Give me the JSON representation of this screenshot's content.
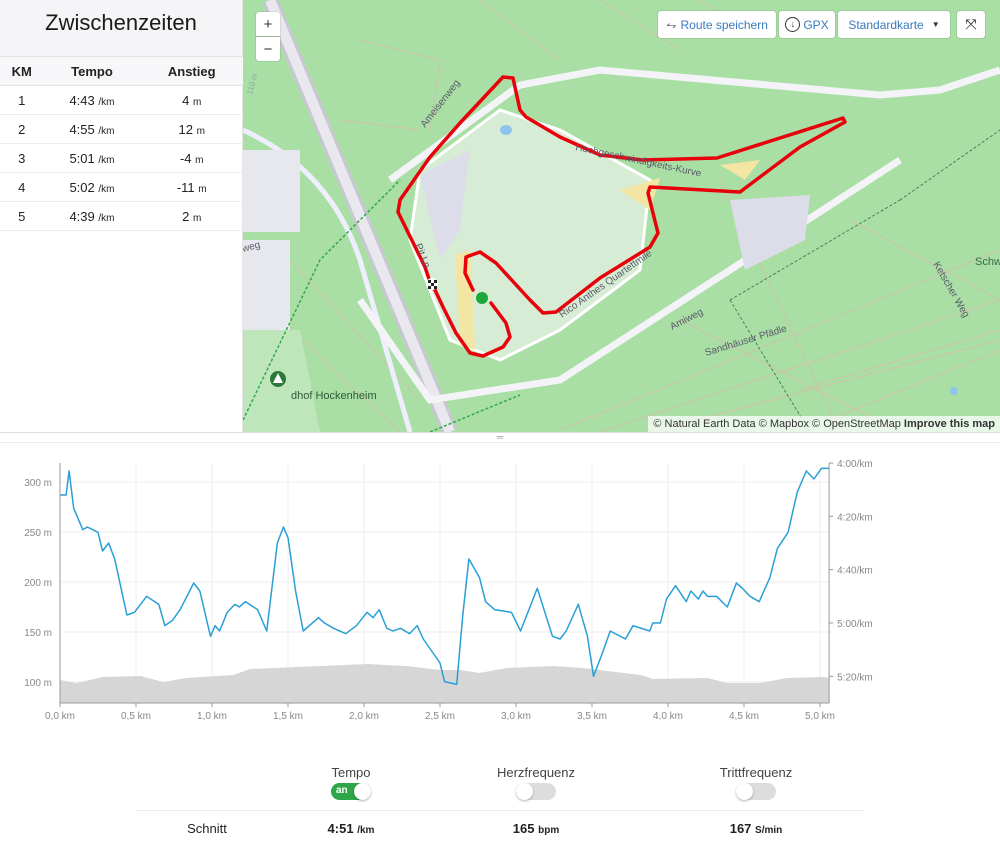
{
  "splits": {
    "title": "Zwischenzeiten",
    "columns": [
      "KM",
      "Tempo",
      "Anstieg"
    ],
    "rows": [
      {
        "km": "1",
        "pace": "4:43",
        "pace_unit": "/km",
        "climb": "4",
        "climb_unit": "m"
      },
      {
        "km": "2",
        "pace": "4:55",
        "pace_unit": "/km",
        "climb": "12",
        "climb_unit": "m"
      },
      {
        "km": "3",
        "pace": "5:01",
        "pace_unit": "/km",
        "climb": "-4",
        "climb_unit": "m"
      },
      {
        "km": "4",
        "pace": "5:02",
        "pace_unit": "/km",
        "climb": "-11",
        "climb_unit": "m"
      },
      {
        "km": "5",
        "pace": "4:39",
        "pace_unit": "/km",
        "climb": "2",
        "climb_unit": "m"
      }
    ]
  },
  "map": {
    "zoom_in": "+",
    "zoom_out": "−",
    "save_route": "Route speichern",
    "gpx": "GPX",
    "style": "Standardkarte",
    "labels": {
      "ameisenweg": "Ameisenweg",
      "hgk": "Hochgeschwindigkeits-Kurve",
      "quarter": "Rico Anthes Quartettmile",
      "pit": "Pit Ln",
      "amiweg": "Amiweg",
      "sandhaeuser": "Sandhäuser Pfädle",
      "ketscher": "Ketscher Weg",
      "schw": "Schw",
      "friedhof": "dhof Hockenheim",
      "weg": "weg",
      "elev": "110 m"
    },
    "attribution": "© Natural Earth Data © Mapbox © OpenStreetMap",
    "improve": "Improve this map",
    "route_color": "#e8000b",
    "start_color": "#1fa83a"
  },
  "chart_data": {
    "type": "line",
    "x_unit": "km",
    "xlim": [
      0,
      5.06
    ],
    "x_ticks": [
      "0,0 km",
      "0,5 km",
      "1,0 km",
      "1,5 km",
      "2,0 km",
      "2,5 km",
      "3,0 km",
      "3,5 km",
      "4,0 km",
      "4,5 km",
      "5,0 km"
    ],
    "y_left_ticks": [
      "100 m",
      "150 m",
      "200 m",
      "250 m",
      "300 m"
    ],
    "y_left_lim": [
      79,
      319
    ],
    "y_right_ticks": [
      "4:00/km",
      "4:20/km",
      "4:40/km",
      "5:00/km",
      "5:20/km"
    ],
    "y_right_lim": [
      "4:00",
      "5:30"
    ],
    "grid": true,
    "series": [
      {
        "kind": "pace",
        "color": "#2a9fd6",
        "axis": "right",
        "x": [
          0,
          0.04,
          0.06,
          0.09,
          0.15,
          0.18,
          0.25,
          0.28,
          0.32,
          0.36,
          0.44,
          0.49,
          0.57,
          0.65,
          0.69,
          0.74,
          0.79,
          0.88,
          0.92,
          0.99,
          1.02,
          1.05,
          1.1,
          1.15,
          1.18,
          1.22,
          1.3,
          1.36,
          1.43,
          1.47,
          1.5,
          1.55,
          1.6,
          1.7,
          1.74,
          1.8,
          1.88,
          1.95,
          2.02,
          2.06,
          2.1,
          2.15,
          2.19,
          2.24,
          2.3,
          2.35,
          2.39,
          2.5,
          2.53,
          2.61,
          2.65,
          2.69,
          2.76,
          2.8,
          2.86,
          2.97,
          3.03,
          3.14,
          3.19,
          3.24,
          3.29,
          3.33,
          3.41,
          3.47,
          3.51,
          3.57,
          3.62,
          3.72,
          3.77,
          3.88,
          3.9,
          3.95,
          3.99,
          4.05,
          4.12,
          4.15,
          4.2,
          4.23,
          4.26,
          4.32,
          4.39,
          4.45,
          4.49,
          4.54,
          4.6,
          4.67,
          4.72,
          4.79,
          4.85,
          4.91,
          4.96,
          5.01,
          5.06
        ],
        "y": [
          "4:12",
          "4:12",
          "4:03",
          "4:17",
          "4:25",
          "4:24",
          "4:26",
          "4:33",
          "4:30",
          "4:36",
          "4:57",
          "4:56",
          "4:50",
          "4:53",
          "5:01",
          "4:59",
          "4:55",
          "4:45",
          "4:48",
          "5:05",
          "5:01",
          "5:03",
          "4:56",
          "4:53",
          "4:54",
          "4:52",
          "4:55",
          "5:03",
          "4:30",
          "4:24",
          "4:28",
          "4:48",
          "5:03",
          "4:58",
          "5:00",
          "5:02",
          "5:04",
          "5:01",
          "4:56",
          "4:58",
          "4:55",
          "5:02",
          "5:03",
          "5:02",
          "5:04",
          "5:01",
          "5:06",
          "5:15",
          "5:22",
          "5:23",
          "4:57",
          "4:36",
          "4:43",
          "4:52",
          "4:55",
          "4:56",
          "5:03",
          "4:47",
          "4:56",
          "5:05",
          "5:06",
          "5:03",
          "4:53",
          "5:05",
          "5:20",
          "5:11",
          "5:03",
          "5:06",
          "5:01",
          "5:03",
          "5:00",
          "5:00",
          "4:51",
          "4:46",
          "4:52",
          "4:48",
          "4:51",
          "4:48",
          "4:50",
          "4:50",
          "4:54",
          "4:45",
          "4:47",
          "4:50",
          "4:52",
          "4:43",
          "4:32",
          "4:26",
          "4:11",
          "4:03",
          "4:06",
          "4:02",
          "4:02"
        ]
      },
      {
        "kind": "elevation",
        "color": "#d6d6d6",
        "axis": "left",
        "x": [
          0,
          0.11,
          0.28,
          0.53,
          0.68,
          0.83,
          1.14,
          1.25,
          1.56,
          2.02,
          2.28,
          2.5,
          2.63,
          2.76,
          2.94,
          3.24,
          3.44,
          3.82,
          3.9,
          4.26,
          4.39,
          4.61,
          4.78,
          5.02,
          5.06
        ],
        "y": [
          102,
          99,
          105,
          106,
          100,
          104,
          107,
          113,
          115,
          118,
          116,
          112,
          112,
          109,
          114,
          116,
          114,
          107,
          103,
          104,
          99,
          99,
          104,
          105,
          104
        ]
      }
    ]
  },
  "metrics": {
    "toggles": [
      {
        "label": "Tempo",
        "on": true,
        "on_text": "an"
      },
      {
        "label": "Herzfrequenz",
        "on": false
      },
      {
        "label": "Trittfrequenz",
        "on": false
      }
    ],
    "avg_label": "Schnitt",
    "avg": [
      {
        "value": "4:51",
        "unit": "/km"
      },
      {
        "value": "165",
        "unit": "bpm"
      },
      {
        "value": "167",
        "unit": "S/min"
      }
    ]
  }
}
